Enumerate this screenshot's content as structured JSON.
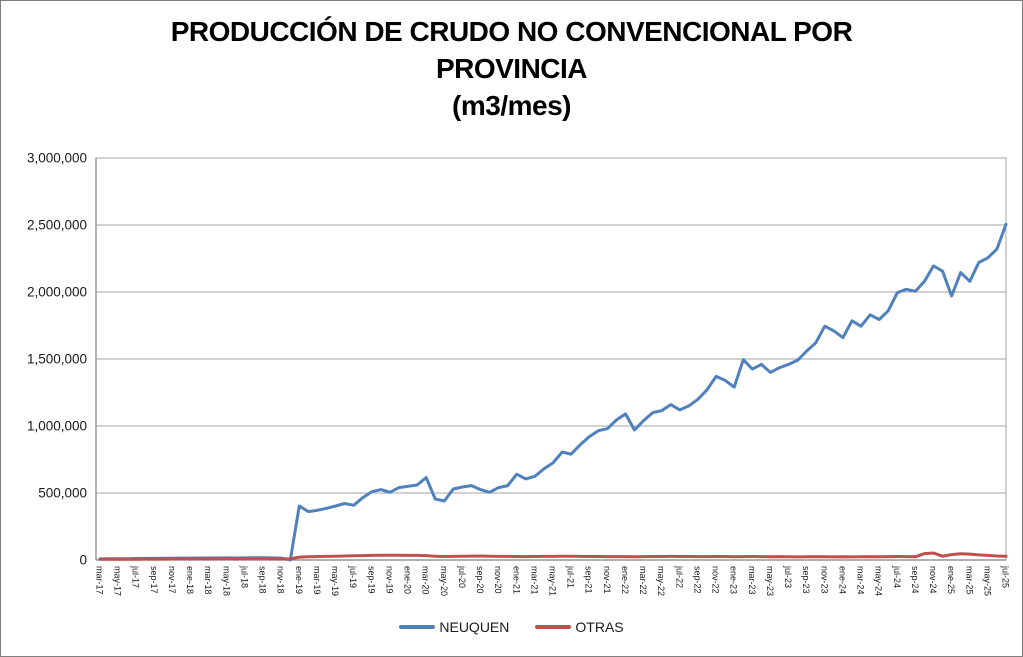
{
  "header": {
    "lines": [
      "PRODUCCIÓN DE CRUDO NO CONVENCIONAL POR",
      "PROVINCIA",
      "(m3/mes)"
    ]
  },
  "chart_data": {
    "type": "line",
    "title": "PRODUCCIÓN DE CRUDO NO CONVENCIONAL POR PROVINCIA (m3/mes)",
    "xlabel": "",
    "ylabel": "",
    "ylim": [
      0,
      3000000
    ],
    "grid": "horizontal",
    "legend_position": "bottom",
    "colors": {
      "grid": "#a6a6a6",
      "axis": "#808080",
      "text": "#1a1a1a"
    },
    "y_ticks": [
      0,
      500000,
      1000000,
      1500000,
      2000000,
      2500000,
      3000000
    ],
    "y_tick_labels": [
      "0",
      "500,000",
      "1,000,000",
      "1,500,000",
      "2,000,000",
      "2,500,000",
      "3,000,000"
    ],
    "x_tick_every": 2,
    "x_tick_labels": [
      "mar-17",
      "may-17",
      "jul-17",
      "sep-17",
      "nov-17",
      "ene-18",
      "mar-18",
      "may-18",
      "jul-18",
      "sep-18",
      "nov-18",
      "ene-19",
      "mar-19",
      "may-19",
      "jul-19",
      "sep-19",
      "nov-19",
      "ene-20",
      "mar-20",
      "may-20",
      "jul-20",
      "sep-20",
      "nov-20",
      "ene-21",
      "mar-21",
      "may-21",
      "jul-21",
      "sep-21",
      "nov-21",
      "ene-22",
      "mar-22",
      "may-22",
      "jul-22",
      "sep-22",
      "nov-22",
      "ene-23",
      "mar-23",
      "may-23",
      "jul-23",
      "sep-23",
      "nov-23",
      "ene-24",
      "mar-24",
      "may-24",
      "jul-24",
      "sep-24",
      "nov-24",
      "ene-25",
      "mar-25",
      "may-25",
      "jul-25"
    ],
    "series": [
      {
        "name": "NEUQUEN",
        "color": "#4f81bd",
        "values": [
          8000,
          9000,
          10000,
          10000,
          11000,
          12000,
          12000,
          13000,
          13000,
          14000,
          14000,
          15000,
          15000,
          16000,
          16000,
          15000,
          16000,
          17000,
          17000,
          16000,
          14000,
          0,
          403000,
          361000,
          371000,
          386000,
          403000,
          422000,
          408000,
          465000,
          510000,
          525000,
          505000,
          540000,
          550000,
          560000,
          615000,
          455000,
          440000,
          530000,
          545000,
          555000,
          525000,
          505000,
          540000,
          555000,
          640000,
          605000,
          625000,
          680000,
          725000,
          805000,
          790000,
          860000,
          920000,
          965000,
          980000,
          1045000,
          1090000,
          970000,
          1040000,
          1100000,
          1115000,
          1160000,
          1120000,
          1150000,
          1200000,
          1270000,
          1370000,
          1340000,
          1290000,
          1495000,
          1425000,
          1460000,
          1400000,
          1435000,
          1460000,
          1490000,
          1560000,
          1620000,
          1745000,
          1710000,
          1660000,
          1785000,
          1745000,
          1830000,
          1795000,
          1860000,
          1995000,
          2020000,
          2005000,
          2080000,
          2195000,
          2155000,
          1970000,
          2145000,
          2080000,
          2220000,
          2255000,
          2320000,
          2505000
        ]
      },
      {
        "name": "OTRAS",
        "color": "#c0504d",
        "values": [
          5000,
          5000,
          6000,
          6000,
          6000,
          7000,
          7000,
          7000,
          8000,
          8000,
          8000,
          8000,
          8000,
          9000,
          9000,
          9000,
          9000,
          9000,
          9000,
          8000,
          8000,
          8000,
          22000,
          24000,
          26000,
          27000,
          28000,
          30000,
          32000,
          33000,
          34000,
          35000,
          35000,
          35000,
          34000,
          34000,
          33000,
          28000,
          26000,
          27000,
          28000,
          29000,
          30000,
          28000,
          27000,
          27000,
          26000,
          25000,
          26000,
          27000,
          27000,
          28000,
          28000,
          27000,
          26000,
          26000,
          25000,
          25000,
          25000,
          24000,
          25000,
          26000,
          26000,
          27000,
          26000,
          26000,
          25000,
          25000,
          26000,
          26000,
          24000,
          25000,
          26000,
          25000,
          24000,
          25000,
          24000,
          23000,
          24000,
          25000,
          24000,
          23000,
          24000,
          23000,
          24000,
          25000,
          24000,
          25000,
          26000,
          25000,
          24000,
          48000,
          52000,
          28000,
          40000,
          46000,
          44000,
          38000,
          34000,
          30000,
          28000
        ]
      }
    ]
  },
  "legend": {
    "items": [
      {
        "label": "NEUQUEN"
      },
      {
        "label": "OTRAS"
      }
    ]
  }
}
